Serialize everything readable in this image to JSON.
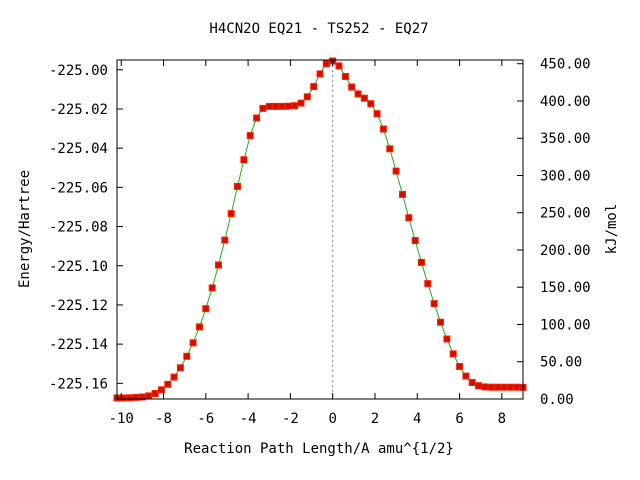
{
  "chart_data": {
    "type": "scatter",
    "title": "H4CN2O   EQ21 - TS252 - EQ27",
    "xlabel": "Reaction Path Length/A amu^{1/2}",
    "ylabel_left": "Energy/Hartree",
    "ylabel_right": "kJ/mol",
    "xlim": [
      -10.2,
      9.0
    ],
    "ylim_left": [
      -225.168,
      -224.995
    ],
    "ylim_right": [
      0,
      455
    ],
    "x_ticks": [
      -10,
      -8,
      -6,
      -4,
      -2,
      0,
      2,
      4,
      6,
      8
    ],
    "x_tick_labels": [
      "-10",
      "-8",
      "-6",
      "-4",
      "-2",
      "0",
      "2",
      "4",
      "6",
      "8"
    ],
    "y_ticks_left": [
      -225.0,
      -225.02,
      -225.04,
      -225.06,
      -225.08,
      -225.1,
      -225.12,
      -225.14,
      -225.16
    ],
    "y_tick_labels_left": [
      "-225.00",
      "-225.02",
      "-225.04",
      "-225.06",
      "-225.08",
      "-225.10",
      "-225.12",
      "-225.14",
      "-225.16"
    ],
    "y_ticks_right": [
      0,
      50,
      100,
      150,
      200,
      250,
      300,
      350,
      400,
      450
    ],
    "y_tick_labels_right": [
      "0.00",
      "50.00",
      "100.00",
      "150.00",
      "200.00",
      "250.00",
      "300.00",
      "350.00",
      "400.00",
      "450.00"
    ],
    "grid": false,
    "ts_marker_x": 0,
    "colors": {
      "line": "#22aa22",
      "point_fill": "#cc1100",
      "point_edge": "#ff2200",
      "ts_line": "#888888",
      "axis": "#000000"
    },
    "series": [
      {
        "x": [
          -10.2,
          -9.9,
          -9.6,
          -9.3,
          -9.0,
          -8.7,
          -8.4,
          -8.1,
          -7.8,
          -7.5,
          -7.2,
          -6.9,
          -6.6,
          -6.3,
          -6.0,
          -5.7,
          -5.4,
          -5.1,
          -4.8,
          -4.5,
          -4.2,
          -3.9,
          -3.6,
          -3.3,
          -3.0,
          -2.7,
          -2.4,
          -2.1,
          -1.8,
          -1.5,
          -1.2,
          -0.9,
          -0.6,
          -0.3,
          0.0,
          0.3,
          0.6,
          0.9,
          1.2,
          1.5,
          1.8,
          2.1,
          2.4,
          2.7,
          3.0,
          3.3,
          3.6,
          3.9,
          4.2,
          4.5,
          4.8,
          5.1,
          5.4,
          5.7,
          6.0,
          6.3,
          6.6,
          6.9,
          7.2,
          7.5,
          7.8,
          8.1,
          8.4,
          8.7,
          9.0
        ],
        "y": [
          -225.1675,
          -225.1675,
          -225.1674,
          -225.1672,
          -225.167,
          -225.1664,
          -225.1652,
          -225.1633,
          -225.1605,
          -225.1568,
          -225.1521,
          -225.1462,
          -225.1393,
          -225.1312,
          -225.1219,
          -225.1113,
          -225.0996,
          -225.0869,
          -225.0734,
          -225.0595,
          -225.0459,
          -225.0336,
          -225.0246,
          -225.0197,
          -225.0187,
          -225.0187,
          -225.0187,
          -225.0186,
          -225.0183,
          -225.017,
          -225.0138,
          -225.0086,
          -225.0021,
          -224.9969,
          -224.9955,
          -224.998,
          -225.0034,
          -225.0088,
          -225.0123,
          -225.0145,
          -225.0173,
          -225.0224,
          -225.0302,
          -225.0403,
          -225.0517,
          -225.0636,
          -225.0755,
          -225.0871,
          -225.0983,
          -225.1091,
          -225.1193,
          -225.1288,
          -225.1374,
          -225.145,
          -225.1514,
          -225.1563,
          -225.1596,
          -225.1612,
          -225.1618,
          -225.162,
          -225.162,
          -225.162,
          -225.162,
          -225.162,
          -225.1621
        ]
      }
    ]
  }
}
